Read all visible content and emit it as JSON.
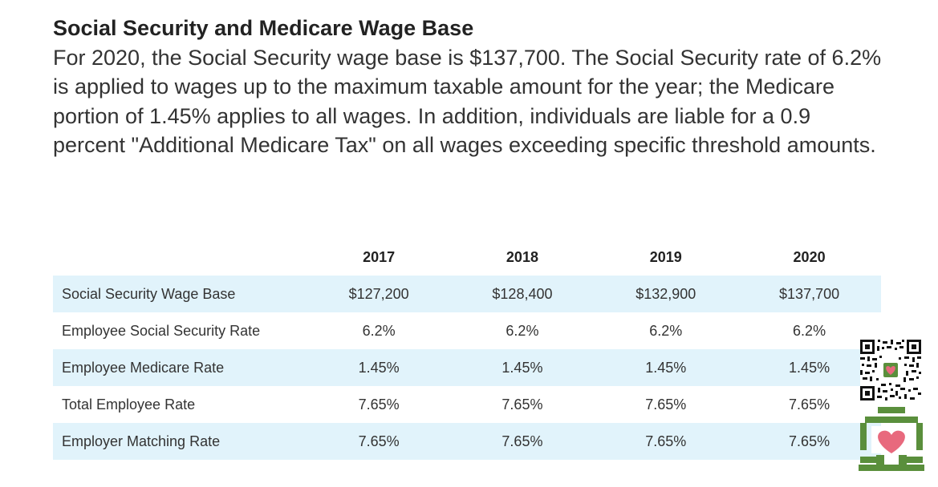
{
  "article": {
    "title": "Social Security and Medicare Wage Base",
    "intro": "For 2020, the Social Security wage base is $137,700. The Social Security rate of 6.2% is applied to wages up to the maximum taxable amount for the year; the Medicare portion of 1.45% applies to all wages. In addition, individuals are liable for a 0.9 percent \"Additional Medicare Tax\" on all wages exceeding specific threshold amounts."
  },
  "table": {
    "columns": [
      "",
      "2017",
      "2018",
      "2019",
      "2020"
    ],
    "rows": [
      {
        "label": "Social Security Wage Base",
        "values": [
          "$127,200",
          "$128,400",
          "$132,900",
          "$137,700"
        ]
      },
      {
        "label": "Employee Social Security Rate",
        "values": [
          "6.2%",
          "6.2%",
          "6.2%",
          "6.2%"
        ]
      },
      {
        "label": "Employee Medicare Rate",
        "values": [
          "1.45%",
          "1.45%",
          "1.45%",
          "1.45%"
        ]
      },
      {
        "label": "Total Employee Rate",
        "values": [
          "7.65%",
          "7.65%",
          "7.65%",
          "7.65%"
        ]
      },
      {
        "label": "Employer Matching Rate",
        "values": [
          "7.65%",
          "7.65%",
          "7.65%",
          "7.65%"
        ]
      }
    ]
  },
  "colors": {
    "row_shade": "#e1f3fb",
    "badge_green": "#5a8f3c",
    "badge_heart": "#e8697d"
  },
  "icons": {
    "qr": "qr-code-icon",
    "badge": "heart-badge-icon"
  }
}
